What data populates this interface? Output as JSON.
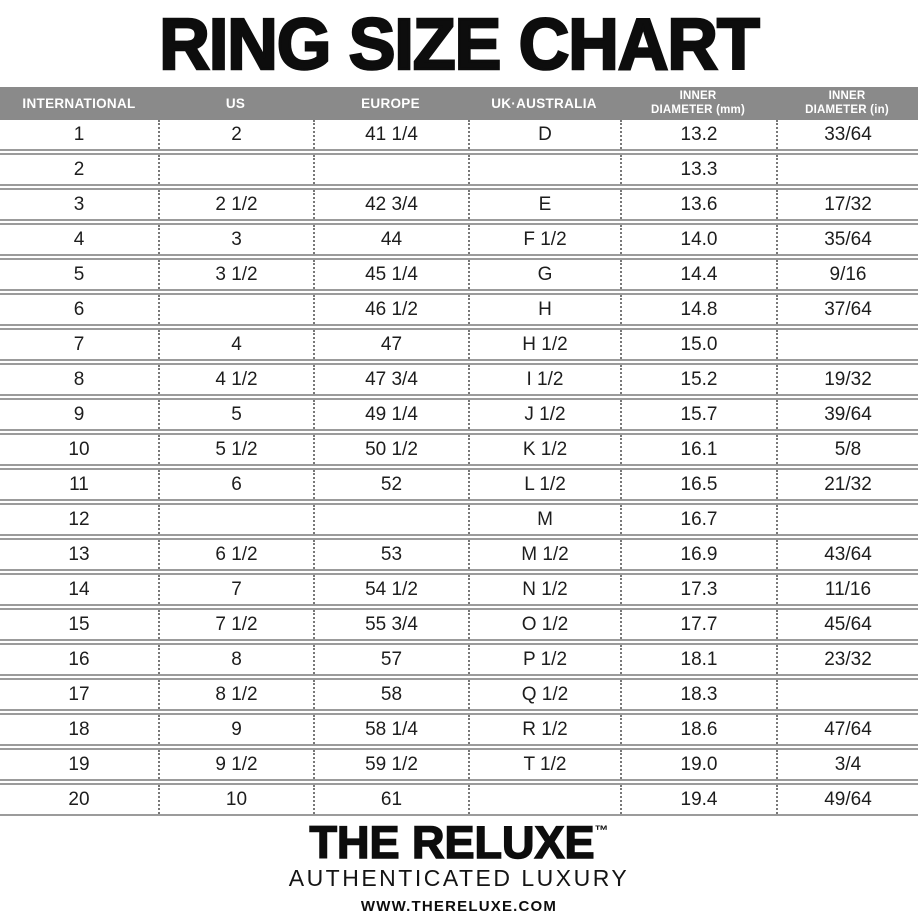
{
  "title": "RING SIZE CHART",
  "chart_data": {
    "type": "table",
    "columns": [
      "INTERNATIONAL",
      "US",
      "EUROPE",
      "UK·AUSTRALIA",
      "INNER\nDIAMETER (mm)",
      "INNER\nDIAMETER (in)"
    ],
    "rows": [
      [
        "1",
        "2",
        "41 1/4",
        "D",
        "13.2",
        "33/64"
      ],
      [
        "2",
        "",
        "",
        "",
        "13.3",
        ""
      ],
      [
        "3",
        "2 1/2",
        "42 3/4",
        "E",
        "13.6",
        "17/32"
      ],
      [
        "4",
        "3",
        "44",
        "F 1/2",
        "14.0",
        "35/64"
      ],
      [
        "5",
        "3 1/2",
        "45 1/4",
        "G",
        "14.4",
        "9/16"
      ],
      [
        "6",
        "",
        "46 1/2",
        "H",
        "14.8",
        "37/64"
      ],
      [
        "7",
        "4",
        "47",
        "H 1/2",
        "15.0",
        ""
      ],
      [
        "8",
        "4 1/2",
        "47 3/4",
        "I 1/2",
        "15.2",
        "19/32"
      ],
      [
        "9",
        "5",
        "49 1/4",
        "J 1/2",
        "15.7",
        "39/64"
      ],
      [
        "10",
        "5 1/2",
        "50 1/2",
        "K 1/2",
        "16.1",
        "5/8"
      ],
      [
        "11",
        "6",
        "52",
        "L 1/2",
        "16.5",
        "21/32"
      ],
      [
        "12",
        "",
        "",
        "M",
        "16.7",
        ""
      ],
      [
        "13",
        "6 1/2",
        "53",
        "M 1/2",
        "16.9",
        "43/64"
      ],
      [
        "14",
        "7",
        "54 1/2",
        "N 1/2",
        "17.3",
        "11/16"
      ],
      [
        "15",
        "7 1/2",
        "55 3/4",
        "O 1/2",
        "17.7",
        "45/64"
      ],
      [
        "16",
        "8",
        "57",
        "P 1/2",
        "18.1",
        "23/32"
      ],
      [
        "17",
        "8 1/2",
        "58",
        "Q 1/2",
        "18.3",
        ""
      ],
      [
        "18",
        "9",
        "58 1/4",
        "R 1/2",
        "18.6",
        "47/64"
      ],
      [
        "19",
        "9 1/2",
        "59 1/2",
        "T 1/2",
        "19.0",
        "3/4"
      ],
      [
        "20",
        "10",
        "61",
        "",
        "19.4",
        "49/64"
      ]
    ]
  },
  "footer": {
    "brand": "THE RELUXE",
    "trademark": "™",
    "tagline": "AUTHENTICATED LUXURY",
    "website": "WWW.THERELUXE.COM"
  },
  "colors": {
    "header_bg": "#8a8a8a",
    "header_text": "#ffffff",
    "row_line": "#9b9b9b",
    "dot_separator": "#787878",
    "text": "#1d1d1d"
  }
}
